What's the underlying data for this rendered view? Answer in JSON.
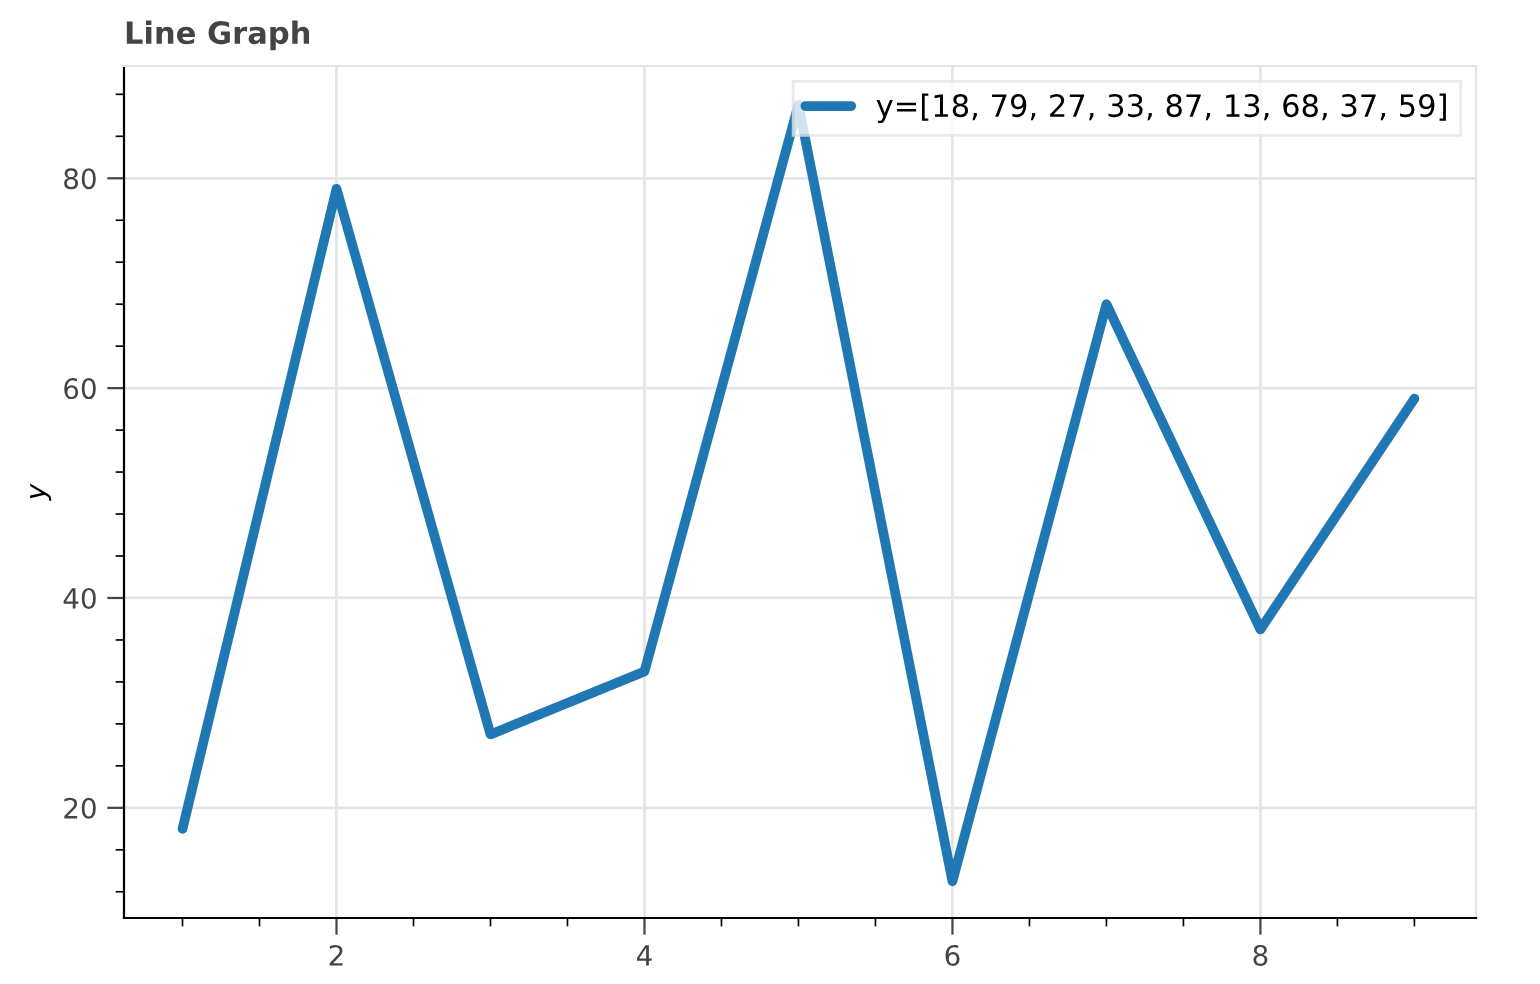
{
  "chart_data": {
    "type": "line",
    "title": "Line Graph",
    "ylabel": "y",
    "x": [
      1,
      2,
      3,
      4,
      5,
      6,
      7,
      8,
      9
    ],
    "series": [
      {
        "name": "y=[18, 79, 27, 33, 87, 13, 68, 37, 59]",
        "color": "#1f77b4",
        "values": [
          18,
          79,
          27,
          33,
          87,
          13,
          68,
          37,
          59
        ]
      }
    ],
    "xlim": [
      0.62,
      9.4
    ],
    "ylim": [
      9.5,
      90.7
    ],
    "xticks": [
      2,
      4,
      6,
      8
    ],
    "yticks": [
      20,
      40,
      60,
      80
    ],
    "grid": true,
    "legend": "top right",
    "marker": "none",
    "line_style": "solid"
  }
}
